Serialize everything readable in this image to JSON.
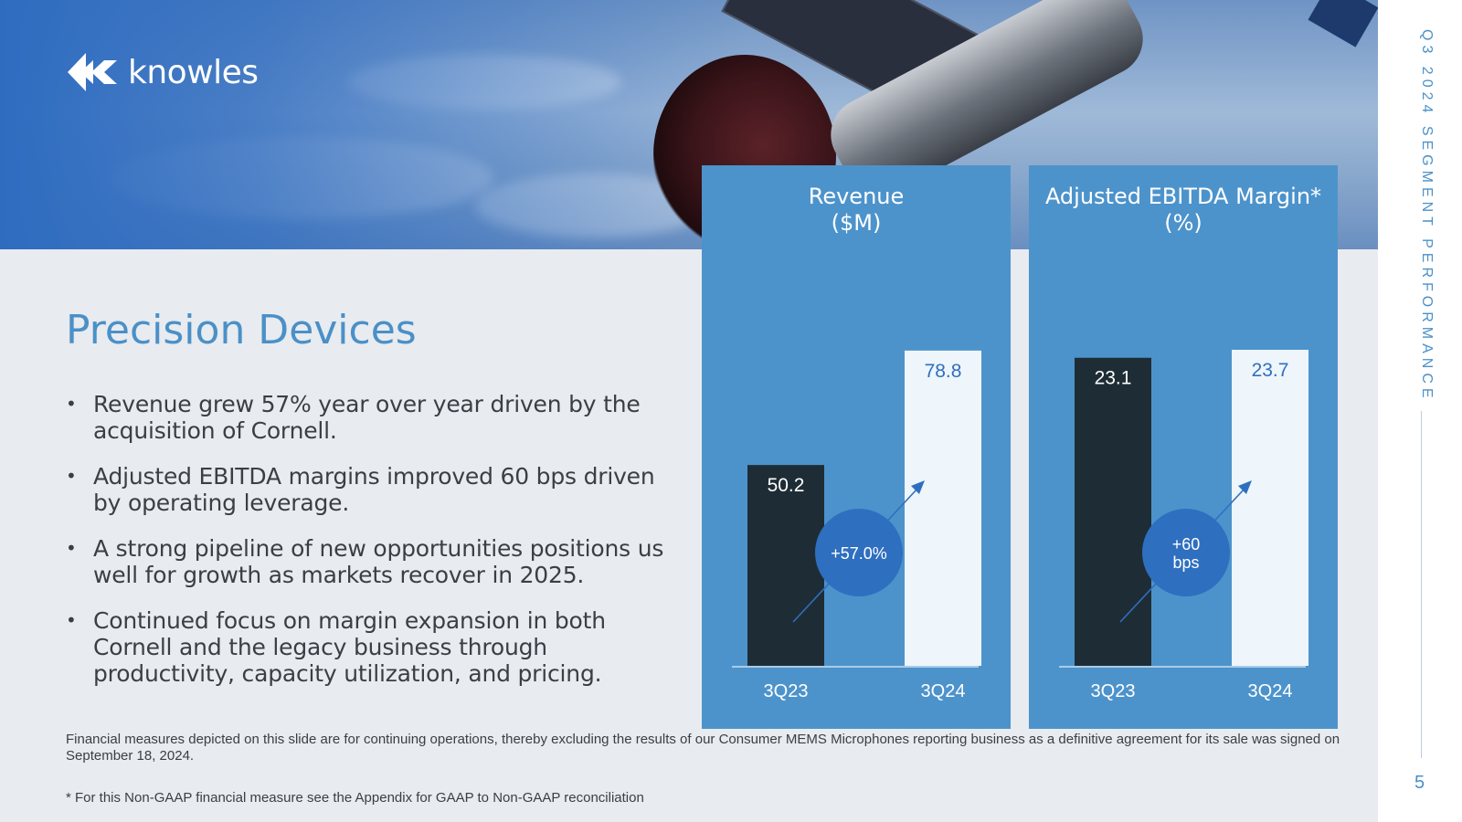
{
  "brand": {
    "name": "knowles"
  },
  "slide": {
    "title": "Precision Devices",
    "side_title": "Q3 2024 SEGMENT PERFORMANCE",
    "page_number": "5"
  },
  "bullets": [
    "Revenue grew 57% year over year driven by the acquisition of Cornell.",
    "Adjusted EBITDA margins improved 60 bps driven by operating leverage.",
    "A strong pipeline of new opportunities positions us well for growth as markets recover in 2025.",
    "Continued focus on margin expansion in both Cornell and the legacy business through productivity, capacity utilization, and pricing."
  ],
  "footnotes": [
    "Financial measures depicted on this slide are for continuing operations, thereby excluding the results of our Consumer MEMS Microphones reporting business as a definitive agreement for its sale was signed on September 18, 2024.",
    "* For this Non-GAAP financial measure see the Appendix for GAAP to Non-GAAP reconciliation"
  ],
  "colors": {
    "accent_blue": "#4a90c8",
    "card_blue": "#4d93cb",
    "bar_prior": "#1e2d35",
    "bar_current": "#eef5fb",
    "badge_blue": "#2f6fc0"
  },
  "chart_data": [
    {
      "type": "bar",
      "title_lines": [
        "Revenue",
        "($M)"
      ],
      "categories": [
        "3Q23",
        "3Q24"
      ],
      "values": [
        50.2,
        78.8
      ],
      "value_labels": [
        "50.2",
        "78.8"
      ],
      "change_label": [
        "+57.0%"
      ],
      "ylim": [
        0,
        100
      ],
      "grid": false,
      "legend": "none"
    },
    {
      "type": "bar",
      "title_lines": [
        "Adjusted EBITDA Margin*",
        "(%)"
      ],
      "categories": [
        "3Q23",
        "3Q24"
      ],
      "values": [
        23.1,
        23.7
      ],
      "value_labels": [
        "23.1",
        "23.7"
      ],
      "change_label": [
        "+60",
        "bps"
      ],
      "ylim": [
        0,
        30
      ],
      "grid": false,
      "legend": "none"
    }
  ]
}
